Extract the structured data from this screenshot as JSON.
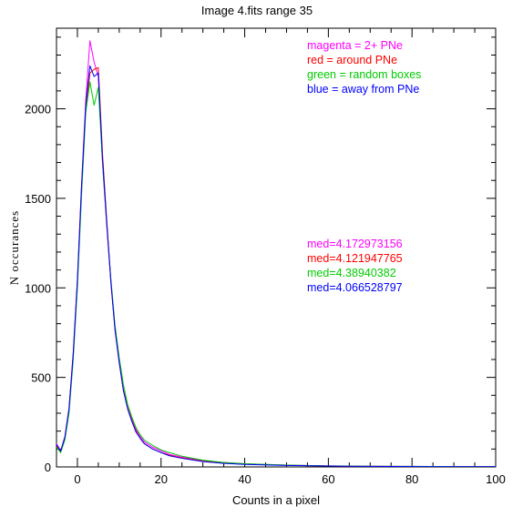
{
  "chart_data": {
    "type": "line",
    "title": "Image 4.fits   range 35",
    "xlabel": "Counts in a pixel",
    "ylabel": "N occurances",
    "xlim": [
      -5,
      100
    ],
    "ylim": [
      0,
      2450
    ],
    "xticks": [
      0,
      20,
      40,
      60,
      80,
      100
    ],
    "xtick_labels": [
      "0",
      "20",
      "40",
      "60",
      "80",
      "100"
    ],
    "yticks": [
      0,
      500,
      1000,
      1500,
      2000
    ],
    "ytick_labels": [
      "0",
      "500",
      "1000",
      "1500",
      "2000"
    ],
    "grid": false,
    "legend_position": "top-right",
    "series": [
      {
        "name": "magenta = 2+ PNe",
        "color": "#ff00ff",
        "median_label": "med=4.172973156",
        "x": [
          -5,
          -4,
          -3,
          -2,
          -1,
          0,
          1,
          2,
          3,
          4,
          5,
          6,
          7,
          8,
          9,
          10,
          11,
          12,
          13,
          14,
          15,
          16,
          18,
          20,
          22,
          25,
          30,
          35,
          40,
          50,
          60,
          70,
          80,
          90,
          100
        ],
        "y": [
          130,
          90,
          170,
          330,
          640,
          1050,
          1580,
          2050,
          2380,
          2260,
          2180,
          1700,
          1350,
          1030,
          760,
          580,
          430,
          330,
          270,
          210,
          170,
          140,
          110,
          90,
          70,
          55,
          35,
          25,
          18,
          10,
          6,
          4,
          3,
          2,
          1
        ]
      },
      {
        "name": "red = around PNe",
        "color": "#ff0000",
        "median_label": "med=4.121947765",
        "x": [
          -5,
          -4,
          -3,
          -2,
          -1,
          0,
          1,
          2,
          3,
          4,
          5,
          6,
          7,
          8,
          9,
          10,
          11,
          12,
          13,
          14,
          15,
          16,
          18,
          20,
          22,
          25,
          30,
          35,
          40,
          50,
          60,
          70,
          80,
          90,
          100
        ],
        "y": [
          120,
          85,
          160,
          320,
          620,
          1030,
          1560,
          2000,
          2200,
          2220,
          2230,
          1750,
          1380,
          1040,
          770,
          590,
          430,
          330,
          260,
          200,
          160,
          130,
          100,
          80,
          65,
          50,
          32,
          22,
          16,
          9,
          5,
          3,
          2,
          1,
          1
        ]
      },
      {
        "name": "green = random boxes",
        "color": "#00cc00",
        "median_label": "med=4.38940382",
        "x": [
          -5,
          -4,
          -3,
          -2,
          -1,
          0,
          1,
          2,
          3,
          4,
          5,
          6,
          7,
          8,
          9,
          10,
          11,
          12,
          13,
          14,
          15,
          16,
          18,
          20,
          22,
          25,
          30,
          35,
          40,
          50,
          60,
          70,
          80,
          90,
          100
        ],
        "y": [
          110,
          80,
          150,
          300,
          600,
          1000,
          1520,
          1980,
          2150,
          2020,
          2120,
          1700,
          1360,
          1050,
          790,
          610,
          460,
          350,
          280,
          220,
          180,
          150,
          120,
          95,
          80,
          60,
          38,
          25,
          18,
          10,
          6,
          4,
          3,
          2,
          1
        ]
      },
      {
        "name": "blue = away from PNe",
        "color": "#0000ff",
        "median_label": "med=4.066528797",
        "x": [
          -5,
          -4,
          -3,
          -2,
          -1,
          0,
          1,
          2,
          3,
          4,
          5,
          6,
          7,
          8,
          9,
          10,
          11,
          12,
          13,
          14,
          15,
          16,
          18,
          20,
          22,
          25,
          30,
          35,
          40,
          50,
          60,
          70,
          80,
          90,
          100
        ],
        "y": [
          125,
          88,
          165,
          325,
          630,
          1040,
          1570,
          2020,
          2240,
          2180,
          2200,
          1720,
          1370,
          1035,
          765,
          585,
          425,
          325,
          255,
          195,
          160,
          130,
          100,
          80,
          62,
          48,
          30,
          20,
          14,
          8,
          5,
          3,
          2,
          1,
          1
        ]
      }
    ]
  }
}
